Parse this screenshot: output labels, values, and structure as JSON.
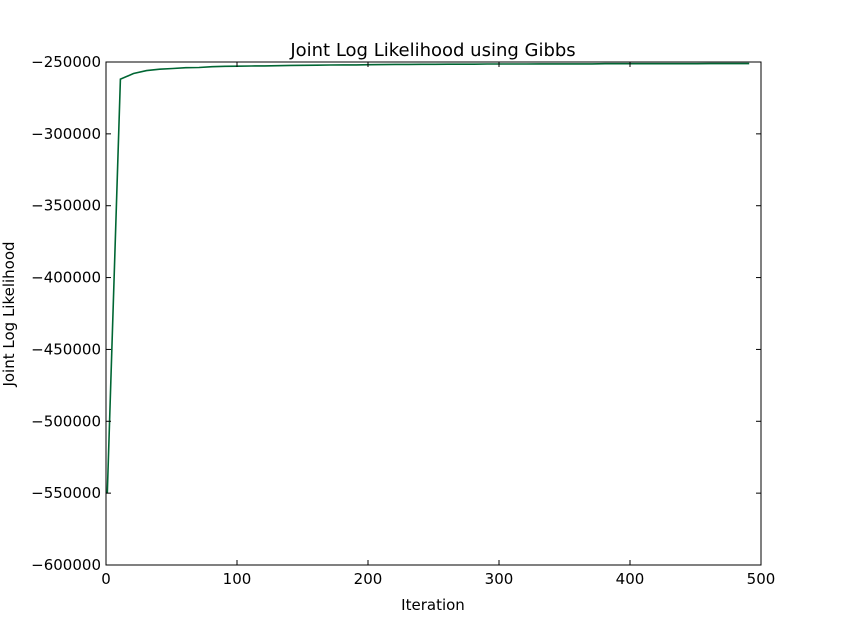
{
  "chart_data": {
    "type": "line",
    "title": "Joint Log Likelihood using Gibbs",
    "xlabel": "Iteration",
    "ylabel": "Joint Log Likelihood",
    "xlim": [
      0,
      500
    ],
    "ylim": [
      -600000,
      -250000
    ],
    "xticks": [
      0,
      100,
      200,
      300,
      400,
      500
    ],
    "yticks": [
      -600000,
      -550000,
      -500000,
      -450000,
      -400000,
      -350000,
      -300000,
      -250000
    ],
    "xtick_labels": [
      "0",
      "100",
      "200",
      "300",
      "400",
      "500"
    ],
    "ytick_labels": [
      "−600000",
      "−550000",
      "−500000",
      "−450000",
      "−400000",
      "−350000",
      "−300000",
      "−250000"
    ],
    "grid": false,
    "series": [
      {
        "color": "#006633",
        "x": [
          1,
          11,
          21,
          31,
          41,
          51,
          61,
          71,
          81,
          91,
          101,
          111,
          121,
          131,
          141,
          151,
          161,
          171,
          181,
          191,
          201,
          211,
          221,
          231,
          241,
          251,
          261,
          271,
          281,
          291,
          301,
          311,
          321,
          331,
          341,
          351,
          361,
          371,
          381,
          391,
          401,
          411,
          421,
          431,
          441,
          451,
          461,
          471,
          481,
          491
        ],
        "y": [
          -550000,
          -262000,
          -258000,
          -256000,
          -255000,
          -254500,
          -254000,
          -253800,
          -253300,
          -253000,
          -252900,
          -252800,
          -252700,
          -252600,
          -252400,
          -252300,
          -252200,
          -252100,
          -252000,
          -252000,
          -251900,
          -251800,
          -251700,
          -251700,
          -251600,
          -251600,
          -251500,
          -251500,
          -251500,
          -251400,
          -251400,
          -251400,
          -251400,
          -251300,
          -251300,
          -251300,
          -251300,
          -251300,
          -251200,
          -251200,
          -251200,
          -251200,
          -251200,
          -251200,
          -251200,
          -251200,
          -251100,
          -251100,
          -251100,
          -251100
        ]
      }
    ]
  }
}
